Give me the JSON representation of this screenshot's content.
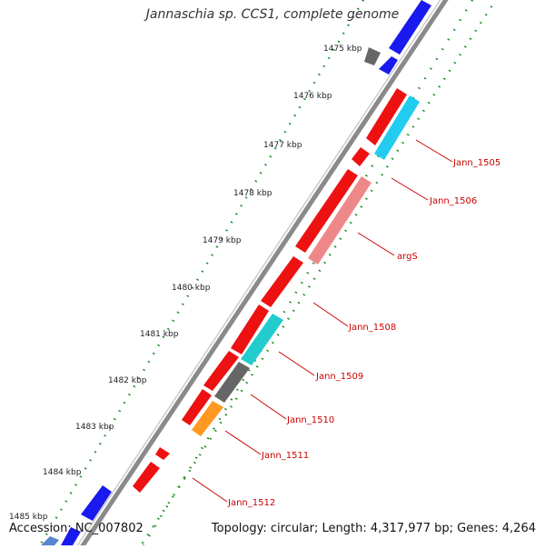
{
  "title": "Jannaschia sp. CCS1, complete genome",
  "accession": "Accession: NC_007802",
  "topology": "Topology: circular; Length: 4,317,977 bp; Genes: 4,264",
  "scale_labels": [
    "1475 kbp",
    "1476 kbp",
    "1477 kbp",
    "1478 kbp",
    "1479 kbp",
    "1480 kbp",
    "1481 kbp",
    "1482 kbp",
    "1483 kbp",
    "1484 kbp",
    "1485 kbp"
  ],
  "gene_labels": [
    "Jann_1505",
    "Jann_1506",
    "argS",
    "Jann_1508",
    "Jann_1509",
    "Jann_1510",
    "Jann_1511",
    "Jann_1512"
  ],
  "colors": {
    "backbone": "#8a8a8a",
    "scale_dots": "#228b22",
    "forward_gene": "#1a1aee",
    "reverse_gene": "#ee1111",
    "gene_cyan": "#22ccee",
    "gene_pink": "#ee8888",
    "gene_teal": "#22cccc",
    "gene_gray": "#666666",
    "gene_orange": "#ff9922",
    "label_line": "#cc0000"
  }
}
